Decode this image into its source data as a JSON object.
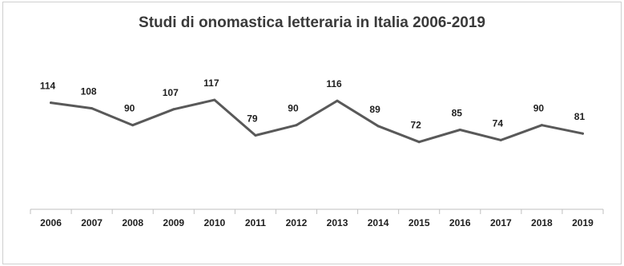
{
  "chart_data": {
    "type": "line",
    "title": "Studi di onomastica letteraria in Italia 2006-2019",
    "xlabel": "",
    "ylabel": "",
    "categories": [
      "2006",
      "2007",
      "2008",
      "2009",
      "2010",
      "2011",
      "2012",
      "2013",
      "2014",
      "2015",
      "2016",
      "2017",
      "2018",
      "2019"
    ],
    "series": [
      {
        "values": [
          114,
          108,
          90,
          107,
          117,
          79,
          90,
          116,
          89,
          72,
          85,
          74,
          90,
          81
        ]
      }
    ],
    "ylim": [
      0,
      135
    ],
    "grid": false,
    "legend": "none",
    "line_color": "#595959"
  }
}
